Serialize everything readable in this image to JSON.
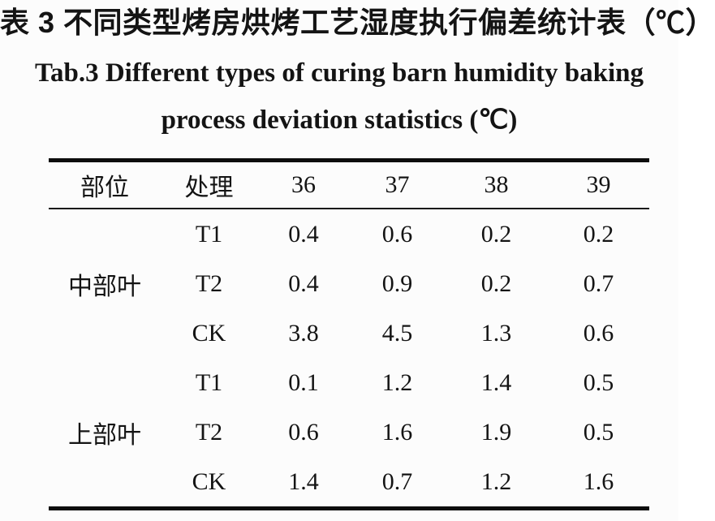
{
  "titles": {
    "zh": "表 3 不同类型烤房烘烤工艺湿度执行偏差统计表（℃）",
    "en_line1": "Tab.3 Different types of curing barn humidity baking",
    "en_line2": "process deviation statistics (℃)"
  },
  "colors": {
    "background": "#fcfcfc",
    "text": "#141414",
    "table_border": "#0d0d0d"
  },
  "chart_data": {
    "type": "table",
    "title": "表 3 不同类型烤房烘烤工艺湿度执行偏差统计表（℃） / Tab.3 Different types of curing barn humidity baking process deviation statistics (℃)",
    "columns": [
      "部位",
      "处理",
      "36",
      "37",
      "38",
      "39"
    ],
    "groups": [
      {
        "part": "中部叶",
        "rows": [
          {
            "treatment": "T1",
            "values": [
              "0.4",
              "0.6",
              "0.2",
              "0.2"
            ]
          },
          {
            "treatment": "T2",
            "values": [
              "0.4",
              "0.9",
              "0.2",
              "0.7"
            ]
          },
          {
            "treatment": "CK",
            "values": [
              "3.8",
              "4.5",
              "1.3",
              "0.6"
            ]
          }
        ]
      },
      {
        "part": "上部叶",
        "rows": [
          {
            "treatment": "T1",
            "values": [
              "0.1",
              "1.2",
              "1.4",
              "0.5"
            ]
          },
          {
            "treatment": "T2",
            "values": [
              "0.6",
              "1.6",
              "1.9",
              "0.5"
            ]
          },
          {
            "treatment": "CK",
            "values": [
              "1.4",
              "0.7",
              "1.2",
              "1.6"
            ]
          }
        ]
      }
    ]
  }
}
